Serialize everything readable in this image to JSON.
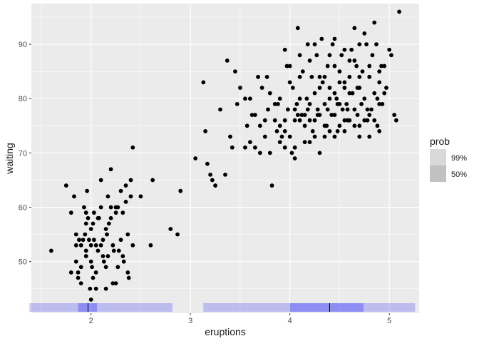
{
  "chart_data": {
    "type": "scatter",
    "xlabel": "eruptions",
    "ylabel": "waiting",
    "xlim": [
      1.4,
      5.3
    ],
    "ylim": [
      40.5,
      97.5
    ],
    "x_ticks": [
      2,
      3,
      4,
      5
    ],
    "y_ticks": [
      50,
      60,
      70,
      80,
      90
    ],
    "grid": true,
    "background": "#ebebeb",
    "point_color": "#000000",
    "band_color": "#0000ff",
    "median_color": "#000000",
    "legend": {
      "title": "prob",
      "position": "right",
      "items": [
        {
          "label": "99%",
          "swatch_color": "#d9d9d9"
        },
        {
          "label": "50%",
          "swatch_color": "#c1c1c1"
        }
      ]
    },
    "interval_groups": [
      {
        "p99": [
          1.38,
          2.82
        ],
        "p50": [
          1.87,
          2.06
        ],
        "median": 1.97
      },
      {
        "p99": [
          3.13,
          5.26
        ],
        "p50": [
          4.0,
          4.74
        ],
        "median": 4.4
      }
    ],
    "points": [
      [
        1.6,
        52
      ],
      [
        1.75,
        64
      ],
      [
        1.8,
        59
      ],
      [
        1.83,
        62
      ],
      [
        1.85,
        53
      ],
      [
        1.85,
        50
      ],
      [
        1.87,
        47
      ],
      [
        1.87,
        48
      ],
      [
        1.88,
        54
      ],
      [
        1.9,
        46
      ],
      [
        1.92,
        54
      ],
      [
        1.93,
        60
      ],
      [
        1.94,
        55
      ],
      [
        1.95,
        51
      ],
      [
        1.96,
        63
      ],
      [
        1.97,
        58
      ],
      [
        1.98,
        54
      ],
      [
        1.99,
        45
      ],
      [
        2.0,
        56
      ],
      [
        2.01,
        49
      ],
      [
        2.02,
        47
      ],
      [
        2.03,
        54
      ],
      [
        2.03,
        59
      ],
      [
        2.05,
        45
      ],
      [
        2.07,
        52
      ],
      [
        2.08,
        58
      ],
      [
        2.1,
        60
      ],
      [
        2.12,
        51
      ],
      [
        2.13,
        50
      ],
      [
        2.15,
        49
      ],
      [
        2.16,
        55
      ],
      [
        2.17,
        62
      ],
      [
        2.18,
        57
      ],
      [
        2.2,
        60
      ],
      [
        2.22,
        53
      ],
      [
        2.23,
        52
      ],
      [
        2.25,
        46
      ],
      [
        2.27,
        49
      ],
      [
        2.3,
        54
      ],
      [
        2.32,
        59
      ],
      [
        2.33,
        50
      ],
      [
        2.35,
        61
      ],
      [
        2.37,
        55
      ],
      [
        2.38,
        47
      ],
      [
        2.4,
        62
      ],
      [
        2.42,
        53
      ],
      [
        1.8,
        48
      ],
      [
        1.85,
        55
      ],
      [
        1.9,
        53
      ],
      [
        1.95,
        57
      ],
      [
        2.0,
        50
      ],
      [
        2.05,
        53
      ],
      [
        2.1,
        53
      ],
      [
        2.15,
        56
      ],
      [
        2.2,
        67
      ],
      [
        2.25,
        59
      ],
      [
        2.3,
        63
      ],
      [
        2.35,
        64
      ],
      [
        2.4,
        65
      ],
      [
        2.42,
        71
      ],
      [
        2.5,
        62
      ],
      [
        2.6,
        53
      ],
      [
        2.62,
        65
      ],
      [
        2.8,
        56
      ],
      [
        2.87,
        55
      ],
      [
        2.9,
        63
      ],
      [
        1.95,
        52
      ],
      [
        2.0,
        43
      ],
      [
        2.05,
        48
      ],
      [
        2.1,
        65
      ],
      [
        1.9,
        49
      ],
      [
        1.95,
        59
      ],
      [
        2.0,
        53
      ],
      [
        2.02,
        57
      ],
      [
        2.07,
        58
      ],
      [
        2.12,
        54
      ],
      [
        2.17,
        51
      ],
      [
        2.22,
        46
      ],
      [
        2.27,
        60
      ],
      [
        2.32,
        51
      ],
      [
        2.37,
        48
      ],
      [
        2.15,
        45
      ],
      [
        2.2,
        58
      ],
      [
        2.25,
        60
      ],
      [
        2.28,
        52
      ],
      [
        3.05,
        69
      ],
      [
        3.13,
        83
      ],
      [
        3.15,
        74
      ],
      [
        3.17,
        68
      ],
      [
        3.2,
        66
      ],
      [
        3.22,
        65
      ],
      [
        3.25,
        64
      ],
      [
        3.3,
        78
      ],
      [
        3.35,
        66
      ],
      [
        3.37,
        87
      ],
      [
        3.4,
        73
      ],
      [
        3.42,
        71
      ],
      [
        3.45,
        85
      ],
      [
        3.47,
        79
      ],
      [
        3.5,
        82
      ],
      [
        3.55,
        80
      ],
      [
        3.57,
        75
      ],
      [
        3.6,
        80
      ],
      [
        3.62,
        77
      ],
      [
        3.65,
        71
      ],
      [
        3.68,
        84
      ],
      [
        3.7,
        75
      ],
      [
        3.72,
        82
      ],
      [
        3.75,
        76
      ],
      [
        3.77,
        84
      ],
      [
        3.8,
        81
      ],
      [
        3.82,
        64
      ],
      [
        3.85,
        79
      ],
      [
        3.87,
        74
      ],
      [
        3.9,
        80
      ],
      [
        3.92,
        73
      ],
      [
        3.95,
        89
      ],
      [
        3.97,
        86
      ],
      [
        4.0,
        86
      ],
      [
        4.02,
        70
      ],
      [
        4.03,
        82
      ],
      [
        4.05,
        78
      ],
      [
        4.07,
        79
      ],
      [
        4.08,
        93
      ],
      [
        4.1,
        84
      ],
      [
        4.12,
        77
      ],
      [
        4.13,
        85
      ],
      [
        4.15,
        72
      ],
      [
        4.17,
        80
      ],
      [
        4.18,
        90
      ],
      [
        4.2,
        76
      ],
      [
        4.22,
        84
      ],
      [
        4.23,
        74
      ],
      [
        4.25,
        81
      ],
      [
        4.27,
        88
      ],
      [
        4.28,
        78
      ],
      [
        4.3,
        77
      ],
      [
        4.32,
        91
      ],
      [
        4.33,
        83
      ],
      [
        4.35,
        79
      ],
      [
        4.37,
        75
      ],
      [
        4.38,
        86
      ],
      [
        4.4,
        82
      ],
      [
        4.42,
        77
      ],
      [
        4.43,
        90
      ],
      [
        4.45,
        81
      ],
      [
        4.47,
        80
      ],
      [
        4.48,
        74
      ],
      [
        4.5,
        83
      ],
      [
        4.52,
        88
      ],
      [
        4.53,
        78
      ],
      [
        4.55,
        82
      ],
      [
        4.57,
        79
      ],
      [
        4.58,
        76
      ],
      [
        4.6,
        84
      ],
      [
        4.62,
        89
      ],
      [
        4.63,
        81
      ],
      [
        4.65,
        78
      ],
      [
        4.67,
        86
      ],
      [
        4.68,
        82
      ],
      [
        4.7,
        73
      ],
      [
        4.72,
        79
      ],
      [
        4.73,
        85
      ],
      [
        4.75,
        80
      ],
      [
        4.77,
        90
      ],
      [
        4.78,
        76
      ],
      [
        4.8,
        84
      ],
      [
        4.82,
        78
      ],
      [
        4.83,
        88
      ],
      [
        4.85,
        81
      ],
      [
        4.87,
        90
      ],
      [
        4.88,
        75
      ],
      [
        4.9,
        83
      ],
      [
        4.92,
        86
      ],
      [
        4.93,
        79
      ],
      [
        4.95,
        86
      ],
      [
        4.97,
        82
      ],
      [
        5.0,
        89
      ],
      [
        5.02,
        88
      ],
      [
        5.05,
        77
      ],
      [
        5.07,
        76
      ],
      [
        5.1,
        96
      ],
      [
        3.9,
        75
      ],
      [
        3.95,
        76
      ],
      [
        4.0,
        73
      ],
      [
        4.05,
        71
      ],
      [
        4.1,
        76
      ],
      [
        4.15,
        75
      ],
      [
        4.2,
        72
      ],
      [
        4.25,
        73
      ],
      [
        4.3,
        70
      ],
      [
        4.35,
        73
      ],
      [
        4.4,
        74
      ],
      [
        4.45,
        73
      ],
      [
        4.5,
        75
      ],
      [
        4.55,
        74
      ],
      [
        4.6,
        76
      ],
      [
        4.7,
        75
      ],
      [
        4.8,
        73
      ],
      [
        4.9,
        74
      ],
      [
        3.95,
        71
      ],
      [
        4.05,
        69
      ],
      [
        4.25,
        90
      ],
      [
        4.35,
        84
      ],
      [
        4.45,
        86
      ],
      [
        4.55,
        83
      ],
      [
        4.65,
        87
      ],
      [
        4.7,
        90
      ],
      [
        4.75,
        92
      ],
      [
        4.85,
        94
      ],
      [
        4.95,
        81
      ],
      [
        4.0,
        83
      ],
      [
        4.1,
        80
      ],
      [
        4.2,
        79
      ],
      [
        4.3,
        82
      ],
      [
        4.4,
        80
      ],
      [
        4.5,
        79
      ],
      [
        4.6,
        81
      ],
      [
        4.7,
        82
      ],
      [
        4.8,
        77
      ],
      [
        4.9,
        79
      ],
      [
        3.78,
        78
      ],
      [
        3.88,
        79
      ],
      [
        3.98,
        78
      ],
      [
        4.08,
        77
      ],
      [
        4.18,
        78
      ],
      [
        4.28,
        77
      ],
      [
        4.38,
        78
      ],
      [
        4.48,
        79
      ],
      [
        4.58,
        78
      ],
      [
        4.68,
        77
      ],
      [
        4.78,
        78
      ],
      [
        4.88,
        80
      ],
      [
        3.65,
        77
      ],
      [
        3.75,
        73
      ],
      [
        3.85,
        76
      ],
      [
        3.95,
        74
      ],
      [
        4.05,
        76
      ],
      [
        4.15,
        77
      ],
      [
        4.25,
        76
      ],
      [
        4.35,
        75
      ],
      [
        4.45,
        77
      ],
      [
        4.55,
        76
      ],
      [
        4.65,
        75
      ],
      [
        4.75,
        76
      ],
      [
        4.85,
        76
      ],
      [
        3.55,
        71
      ],
      [
        3.6,
        72
      ],
      [
        3.7,
        70
      ],
      [
        3.8,
        70
      ],
      [
        3.9,
        72
      ],
      [
        4.3,
        84
      ],
      [
        4.5,
        85
      ],
      [
        4.6,
        87
      ],
      [
        4.7,
        84
      ],
      [
        4.8,
        86
      ],
      [
        4.9,
        85
      ],
      [
        4.1,
        88
      ],
      [
        4.2,
        87
      ],
      [
        4.4,
        88
      ],
      [
        4.45,
        91
      ],
      [
        4.55,
        89
      ],
      [
        4.65,
        93
      ]
    ]
  }
}
